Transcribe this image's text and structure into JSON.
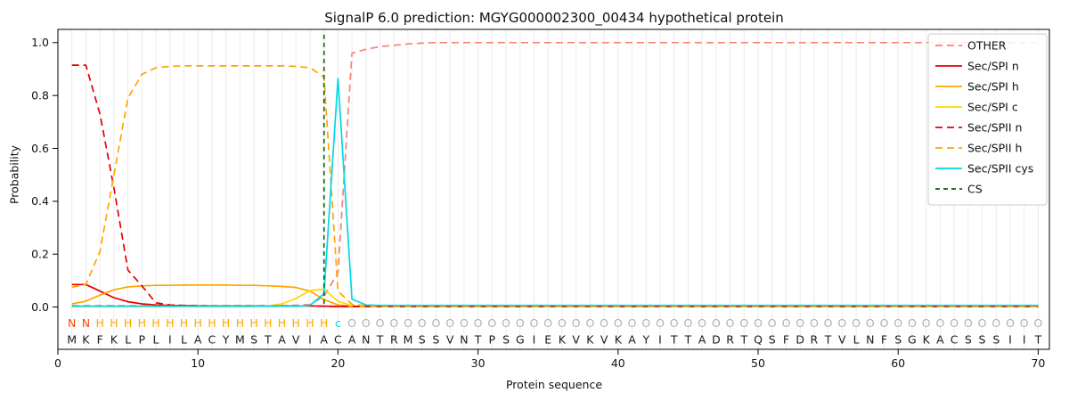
{
  "chart_data": {
    "type": "line",
    "title": "SignalP 6.0 prediction: MGYG000002300_00434 hypothetical protein",
    "xlabel": "Protein sequence",
    "ylabel": "Probability",
    "xlim": [
      0,
      70.8
    ],
    "ylim": [
      -0.16,
      1.05
    ],
    "xticks": [
      0,
      10,
      20,
      30,
      40,
      50,
      60,
      70
    ],
    "yticks": [
      0.0,
      0.2,
      0.4,
      0.6,
      0.8,
      1.0
    ],
    "grid": "vertical-per-residue",
    "legend_position": "upper right",
    "sequence": "MKFKLPLILACYMSTAVIACANTRMSSVNTPSGIEKVKVKAYITTADRTQSFDRTVLNFSGKACSSSIIT",
    "region_labels": "NNHHHHHHHHHHHHHHHHHcOOOOOOOOOOOOOOOOOOOOOOOOOOOOOOOOOOOOOOOOOOOOOOOOOO",
    "rows": {
      "labels_y": -0.062,
      "sequence_y": -0.125
    },
    "colors": {
      "grid": "#e7e7e7",
      "labels": {
        "N": "#ff4500",
        "H": "#ffa500",
        "c": "#00d8e8",
        "O": "#b0b0b0"
      }
    },
    "series": [
      {
        "name": "OTHER",
        "color": "#fa8072",
        "dash": "8 5",
        "values": [
          0.005,
          0.005,
          0.005,
          0.005,
          0.005,
          0.005,
          0.005,
          0.005,
          0.005,
          0.005,
          0.005,
          0.005,
          0.005,
          0.005,
          0.005,
          0.005,
          0.006,
          0.01,
          0.04,
          0.13,
          0.96,
          0.975,
          0.985,
          0.99,
          0.995,
          0.998,
          1,
          1,
          1,
          1,
          1,
          1,
          1,
          1,
          1,
          1,
          1,
          1,
          1,
          1,
          1,
          1,
          1,
          1,
          1,
          1,
          1,
          1,
          1,
          1,
          1,
          1,
          1,
          1,
          1,
          1,
          1,
          1,
          1,
          1,
          1,
          1,
          1,
          1,
          1,
          1,
          1,
          1,
          1,
          1
        ]
      },
      {
        "name": "Sec/SPI n",
        "color": "#e60000",
        "dash": null,
        "values": [
          0.085,
          0.085,
          0.06,
          0.035,
          0.02,
          0.012,
          0.008,
          0.006,
          0.005,
          0.004,
          0.004,
          0.004,
          0.004,
          0.004,
          0.004,
          0.004,
          0.004,
          0.004,
          0.003,
          0.002,
          0.002,
          0.002,
          0.002,
          0.002,
          0.002,
          0.002,
          0.002,
          0.002,
          0.002,
          0.002,
          0.002,
          0.002,
          0.002,
          0.002,
          0.002,
          0.002,
          0.002,
          0.002,
          0.002,
          0.002,
          0.002,
          0.002,
          0.002,
          0.002,
          0.002,
          0.002,
          0.002,
          0.002,
          0.002,
          0.002,
          0.002,
          0.002,
          0.002,
          0.002,
          0.002,
          0.002,
          0.002,
          0.002,
          0.002,
          0.002,
          0.002,
          0.002,
          0.002,
          0.002,
          0.002,
          0.002,
          0.002,
          0.002,
          0.002,
          0.002
        ]
      },
      {
        "name": "Sec/SPI h",
        "color": "#ffa500",
        "dash": null,
        "values": [
          0.012,
          0.022,
          0.045,
          0.065,
          0.076,
          0.08,
          0.082,
          0.082,
          0.083,
          0.083,
          0.083,
          0.083,
          0.082,
          0.082,
          0.08,
          0.078,
          0.074,
          0.06,
          0.028,
          0.008,
          0.003,
          0.002,
          0.002,
          0.002,
          0.002,
          0.002,
          0.002,
          0.002,
          0.002,
          0.002,
          0.002,
          0.002,
          0.002,
          0.002,
          0.002,
          0.002,
          0.002,
          0.002,
          0.002,
          0.002,
          0.002,
          0.002,
          0.002,
          0.002,
          0.002,
          0.002,
          0.002,
          0.002,
          0.002,
          0.002,
          0.002,
          0.002,
          0.002,
          0.002,
          0.002,
          0.002,
          0.002,
          0.002,
          0.002,
          0.002,
          0.002,
          0.002,
          0.002,
          0.002,
          0.002,
          0.002,
          0.002,
          0.002,
          0.002,
          0.002
        ]
      },
      {
        "name": "Sec/SPI c",
        "color": "#ffd700",
        "dash": null,
        "values": [
          0.002,
          0.002,
          0.002,
          0.002,
          0.002,
          0.002,
          0.002,
          0.002,
          0.002,
          0.002,
          0.002,
          0.002,
          0.002,
          0.002,
          0.004,
          0.012,
          0.032,
          0.062,
          0.068,
          0.022,
          0.005,
          0.002,
          0.002,
          0.002,
          0.002,
          0.002,
          0.002,
          0.002,
          0.002,
          0.002,
          0.002,
          0.002,
          0.002,
          0.002,
          0.002,
          0.002,
          0.002,
          0.002,
          0.002,
          0.002,
          0.002,
          0.002,
          0.002,
          0.002,
          0.002,
          0.002,
          0.002,
          0.002,
          0.002,
          0.002,
          0.002,
          0.002,
          0.002,
          0.002,
          0.002,
          0.002,
          0.002,
          0.002,
          0.002,
          0.002,
          0.002,
          0.002,
          0.002,
          0.002,
          0.002,
          0.002,
          0.002,
          0.002,
          0.002,
          0.002
        ]
      },
      {
        "name": "Sec/SPII n",
        "color": "#e60000",
        "dash": "8 5",
        "values": [
          0.915,
          0.915,
          0.73,
          0.45,
          0.14,
          0.08,
          0.016,
          0.008,
          0.006,
          0.005,
          0.004,
          0.004,
          0.004,
          0.004,
          0.004,
          0.004,
          0.004,
          0.004,
          0.003,
          0.002,
          0.002,
          0.002,
          0.002,
          0.002,
          0.002,
          0.002,
          0.002,
          0.002,
          0.002,
          0.002,
          0.002,
          0.002,
          0.002,
          0.002,
          0.002,
          0.002,
          0.002,
          0.002,
          0.002,
          0.002,
          0.002,
          0.002,
          0.002,
          0.002,
          0.002,
          0.002,
          0.002,
          0.002,
          0.002,
          0.002,
          0.002,
          0.002,
          0.002,
          0.002,
          0.002,
          0.002,
          0.002,
          0.002,
          0.002,
          0.002,
          0.002,
          0.002,
          0.002,
          0.002,
          0.002,
          0.002,
          0.002,
          0.002,
          0.002,
          0.002
        ]
      },
      {
        "name": "Sec/SPII h",
        "color": "#ffa500",
        "dash": "8 5",
        "values": [
          0.075,
          0.085,
          0.21,
          0.5,
          0.79,
          0.88,
          0.905,
          0.91,
          0.912,
          0.912,
          0.912,
          0.912,
          0.912,
          0.912,
          0.912,
          0.912,
          0.91,
          0.905,
          0.87,
          0.06,
          0.01,
          0.005,
          0.003,
          0.003,
          0.003,
          0.003,
          0.003,
          0.003,
          0.003,
          0.003,
          0.003,
          0.003,
          0.003,
          0.003,
          0.003,
          0.003,
          0.003,
          0.003,
          0.003,
          0.003,
          0.003,
          0.003,
          0.003,
          0.003,
          0.003,
          0.003,
          0.003,
          0.003,
          0.003,
          0.003,
          0.003,
          0.003,
          0.003,
          0.003,
          0.003,
          0.003,
          0.003,
          0.003,
          0.003,
          0.003,
          0.003,
          0.003,
          0.003,
          0.003,
          0.003,
          0.003,
          0.003,
          0.003,
          0.003,
          0.003
        ]
      },
      {
        "name": "Sec/SPII cys",
        "color": "#00d8e8",
        "dash": null,
        "values": [
          0.003,
          0.003,
          0.003,
          0.003,
          0.003,
          0.003,
          0.003,
          0.003,
          0.003,
          0.003,
          0.003,
          0.003,
          0.003,
          0.003,
          0.003,
          0.003,
          0.003,
          0.006,
          0.05,
          0.865,
          0.03,
          0.008,
          0.006,
          0.006,
          0.006,
          0.006,
          0.006,
          0.006,
          0.006,
          0.006,
          0.006,
          0.006,
          0.006,
          0.006,
          0.006,
          0.006,
          0.006,
          0.006,
          0.006,
          0.006,
          0.006,
          0.006,
          0.006,
          0.006,
          0.006,
          0.006,
          0.006,
          0.006,
          0.006,
          0.006,
          0.006,
          0.006,
          0.006,
          0.006,
          0.006,
          0.006,
          0.006,
          0.006,
          0.006,
          0.006,
          0.006,
          0.006,
          0.006,
          0.006,
          0.006,
          0.006,
          0.006,
          0.006,
          0.006,
          0.006
        ]
      }
    ],
    "cs": {
      "name": "CS",
      "color": "#006400",
      "dash": "5 4",
      "position": 19
    }
  }
}
